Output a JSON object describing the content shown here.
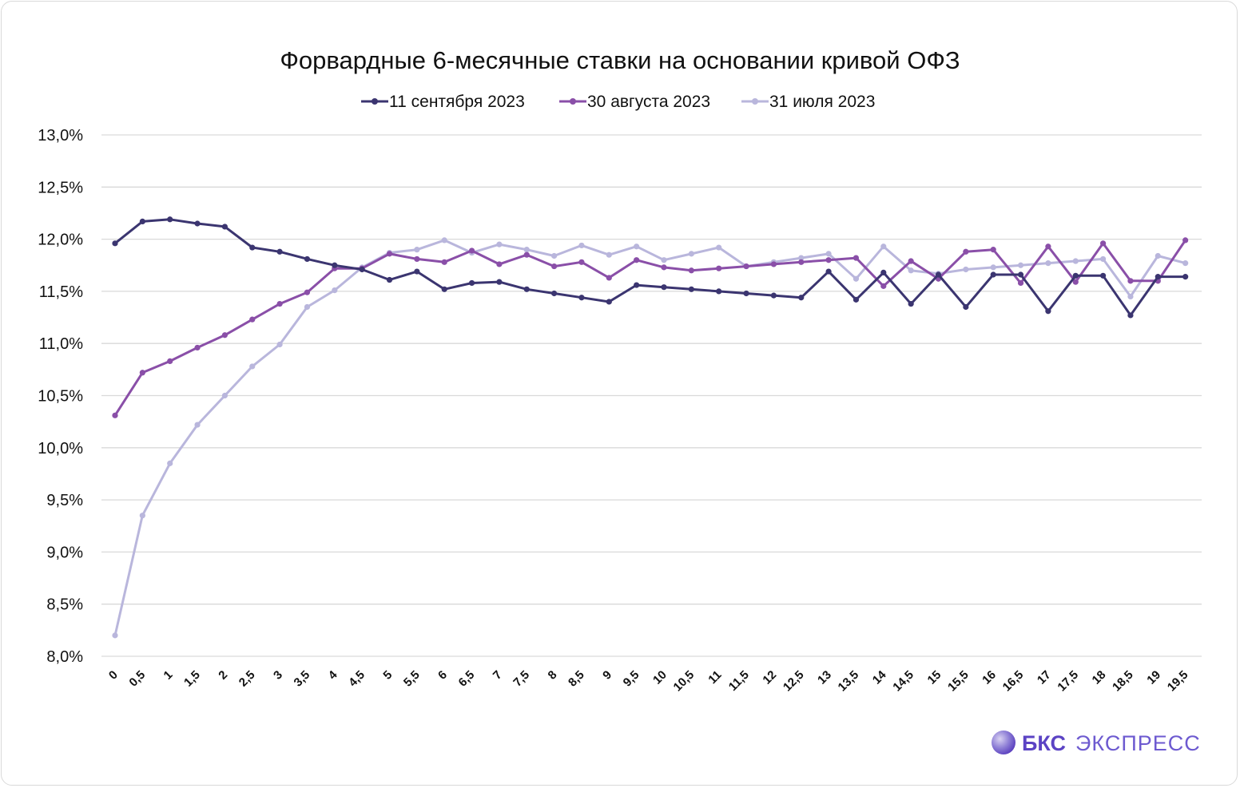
{
  "chart_data": {
    "type": "line",
    "title": "Форвардные 6-месячные ставки на основании кривой ОФЗ",
    "xlabel": "",
    "ylabel": "",
    "ylim": [
      8.0,
      13.0
    ],
    "y_ticks": [
      "8,0%",
      "8,5%",
      "9,0%",
      "9,5%",
      "10,0%",
      "10,5%",
      "11,0%",
      "11,5%",
      "12,0%",
      "12,5%",
      "13,0%"
    ],
    "grid": "horizontal",
    "legend_position": "top",
    "categories": [
      "0",
      "0,5",
      "1",
      "1,5",
      "2",
      "2,5",
      "3",
      "3,5",
      "4",
      "4,5",
      "5",
      "5,5",
      "6",
      "6,5",
      "7",
      "7,5",
      "8",
      "8,5",
      "9",
      "9,5",
      "10",
      "10,5",
      "11",
      "11,5",
      "12",
      "12,5",
      "13",
      "13,5",
      "14",
      "14,5",
      "15",
      "15,5",
      "16",
      "16,5",
      "17",
      "17,5",
      "18",
      "18,5",
      "19",
      "19,5"
    ],
    "series": [
      {
        "name": "11 сентября 2023",
        "color": "#3b3570",
        "values": [
          11.96,
          12.17,
          12.19,
          12.15,
          12.12,
          11.92,
          11.88,
          11.81,
          11.75,
          11.71,
          11.61,
          11.69,
          11.52,
          11.58,
          11.59,
          11.52,
          11.48,
          11.44,
          11.4,
          11.56,
          11.54,
          11.52,
          11.5,
          11.48,
          11.46,
          11.44,
          11.69,
          11.42,
          11.68,
          11.38,
          11.66,
          11.35,
          11.66,
          11.66,
          11.31,
          11.65,
          11.65,
          11.27,
          11.64,
          11.64
        ]
      },
      {
        "name": "30 августа 2023",
        "color": "#8a4fa8",
        "values": [
          10.31,
          10.72,
          10.83,
          10.96,
          11.08,
          11.23,
          11.38,
          11.49,
          11.72,
          11.72,
          11.86,
          11.81,
          11.78,
          11.89,
          11.76,
          11.85,
          11.74,
          11.78,
          11.63,
          11.8,
          11.73,
          11.7,
          11.72,
          11.74,
          11.76,
          11.78,
          11.8,
          11.82,
          11.55,
          11.79,
          11.62,
          11.88,
          11.9,
          11.58,
          11.93,
          11.59,
          11.96,
          11.6,
          11.6,
          11.99
        ]
      },
      {
        "name": "31 июля 2023",
        "color": "#b9b6dc",
        "values": [
          8.2,
          9.35,
          9.85,
          10.22,
          10.5,
          10.78,
          10.99,
          11.35,
          11.51,
          11.73,
          11.87,
          11.9,
          11.99,
          11.87,
          11.95,
          11.9,
          11.84,
          11.94,
          11.85,
          11.93,
          11.8,
          11.86,
          11.92,
          11.74,
          11.78,
          11.82,
          11.86,
          11.62,
          11.93,
          11.7,
          11.67,
          11.71,
          11.73,
          11.75,
          11.77,
          11.79,
          11.81,
          11.45,
          11.84,
          11.77
        ]
      }
    ]
  },
  "brand": {
    "name_bold": "БКС",
    "name_light": "ЭКСПРЕСС",
    "logo_icon": "sphere-logo-icon"
  }
}
